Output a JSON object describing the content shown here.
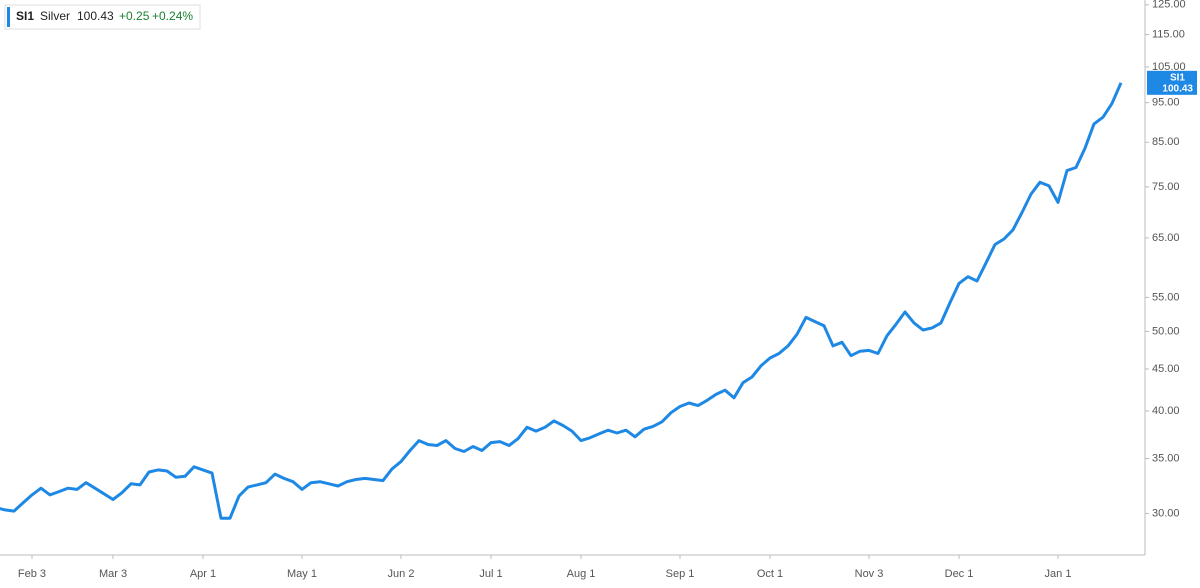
{
  "chart_data": {
    "type": "line",
    "symbol": "SI1",
    "name": "Silver",
    "change": "+0.25",
    "change_percent": "+0.24%",
    "ylog": true,
    "ylim": [
      26.7,
      126.7
    ],
    "yticks": [
      {
        "value": 30,
        "label": "30.00"
      },
      {
        "value": 35,
        "label": "35.00"
      },
      {
        "value": 40,
        "label": "40.00"
      },
      {
        "value": 45,
        "label": "45.00"
      },
      {
        "value": 50,
        "label": "50.00"
      },
      {
        "value": 55,
        "label": "55.00"
      },
      {
        "value": 65,
        "label": "65.00"
      },
      {
        "value": 75,
        "label": "75.00"
      },
      {
        "value": 85,
        "label": "85.00"
      },
      {
        "value": 95,
        "label": "95.00"
      },
      {
        "value": 105,
        "label": "105.00"
      },
      {
        "value": 115,
        "label": "115.00"
      },
      {
        "value": 125,
        "label": "125.00"
      }
    ],
    "categories": [
      null,
      null,
      null,
      null,
      "Feb 3",
      null,
      null,
      null,
      null,
      null,
      null,
      null,
      null,
      "Mar 3",
      null,
      null,
      null,
      null,
      null,
      null,
      null,
      null,
      null,
      "Apr 1",
      null,
      null,
      null,
      null,
      null,
      null,
      null,
      null,
      null,
      null,
      "May 1",
      null,
      null,
      null,
      null,
      null,
      null,
      null,
      null,
      null,
      null,
      "Jun 2",
      null,
      null,
      null,
      null,
      null,
      null,
      null,
      null,
      null,
      "Jul 1",
      null,
      null,
      null,
      null,
      null,
      null,
      null,
      null,
      null,
      "Aug 1",
      null,
      null,
      null,
      null,
      null,
      null,
      null,
      null,
      null,
      null,
      "Sep 1",
      null,
      null,
      null,
      null,
      null,
      null,
      null,
      null,
      null,
      "Oct 1",
      null,
      null,
      null,
      null,
      null,
      null,
      null,
      null,
      null,
      null,
      "Nov 3",
      null,
      null,
      null,
      null,
      null,
      null,
      null,
      null,
      null,
      "Dec 1",
      null,
      null,
      null,
      null,
      null,
      null,
      null,
      null,
      null,
      null,
      "Jan 1",
      null,
      null,
      null,
      null,
      null,
      null,
      null
    ],
    "series": [
      {
        "name": "SI1",
        "color": "#1e88e5",
        "values": [
          30.5,
          30.3,
          30.2,
          30.9,
          31.6,
          32.2,
          31.6,
          31.9,
          32.2,
          32.1,
          32.7,
          32.2,
          31.7,
          31.2,
          31.8,
          32.6,
          32.5,
          33.7,
          33.9,
          33.8,
          33.2,
          33.3,
          34.2,
          33.9,
          33.6,
          29.6,
          29.6,
          31.5,
          32.3,
          32.5,
          32.7,
          33.5,
          33.1,
          32.8,
          32.1,
          32.7,
          32.8,
          32.6,
          32.4,
          32.8,
          33.0,
          33.1,
          33.0,
          32.9,
          34.0,
          34.7,
          35.8,
          36.8,
          36.4,
          36.3,
          36.8,
          36.0,
          35.7,
          36.2,
          35.8,
          36.6,
          36.7,
          36.3,
          37.0,
          38.2,
          37.8,
          38.2,
          38.9,
          38.4,
          37.8,
          36.8,
          37.1,
          37.5,
          37.9,
          37.6,
          37.9,
          37.2,
          38.0,
          38.3,
          38.8,
          39.8,
          40.5,
          40.9,
          40.6,
          41.2,
          41.9,
          42.4,
          41.5,
          43.3,
          44.0,
          45.4,
          46.4,
          47.0,
          48.0,
          49.6,
          52.0,
          51.4,
          50.8,
          48.0,
          48.5,
          46.7,
          47.3,
          47.4,
          47.0,
          49.4,
          51.0,
          52.8,
          51.2,
          50.2,
          50.5,
          51.2,
          54.2,
          57.2,
          58.3,
          57.6,
          60.6,
          63.8,
          64.8,
          66.5,
          69.8,
          73.5,
          76.0,
          75.2,
          71.8,
          78.5,
          79.2,
          83.6,
          89.5,
          91.2,
          94.8,
          100.43
        ]
      }
    ]
  }
}
